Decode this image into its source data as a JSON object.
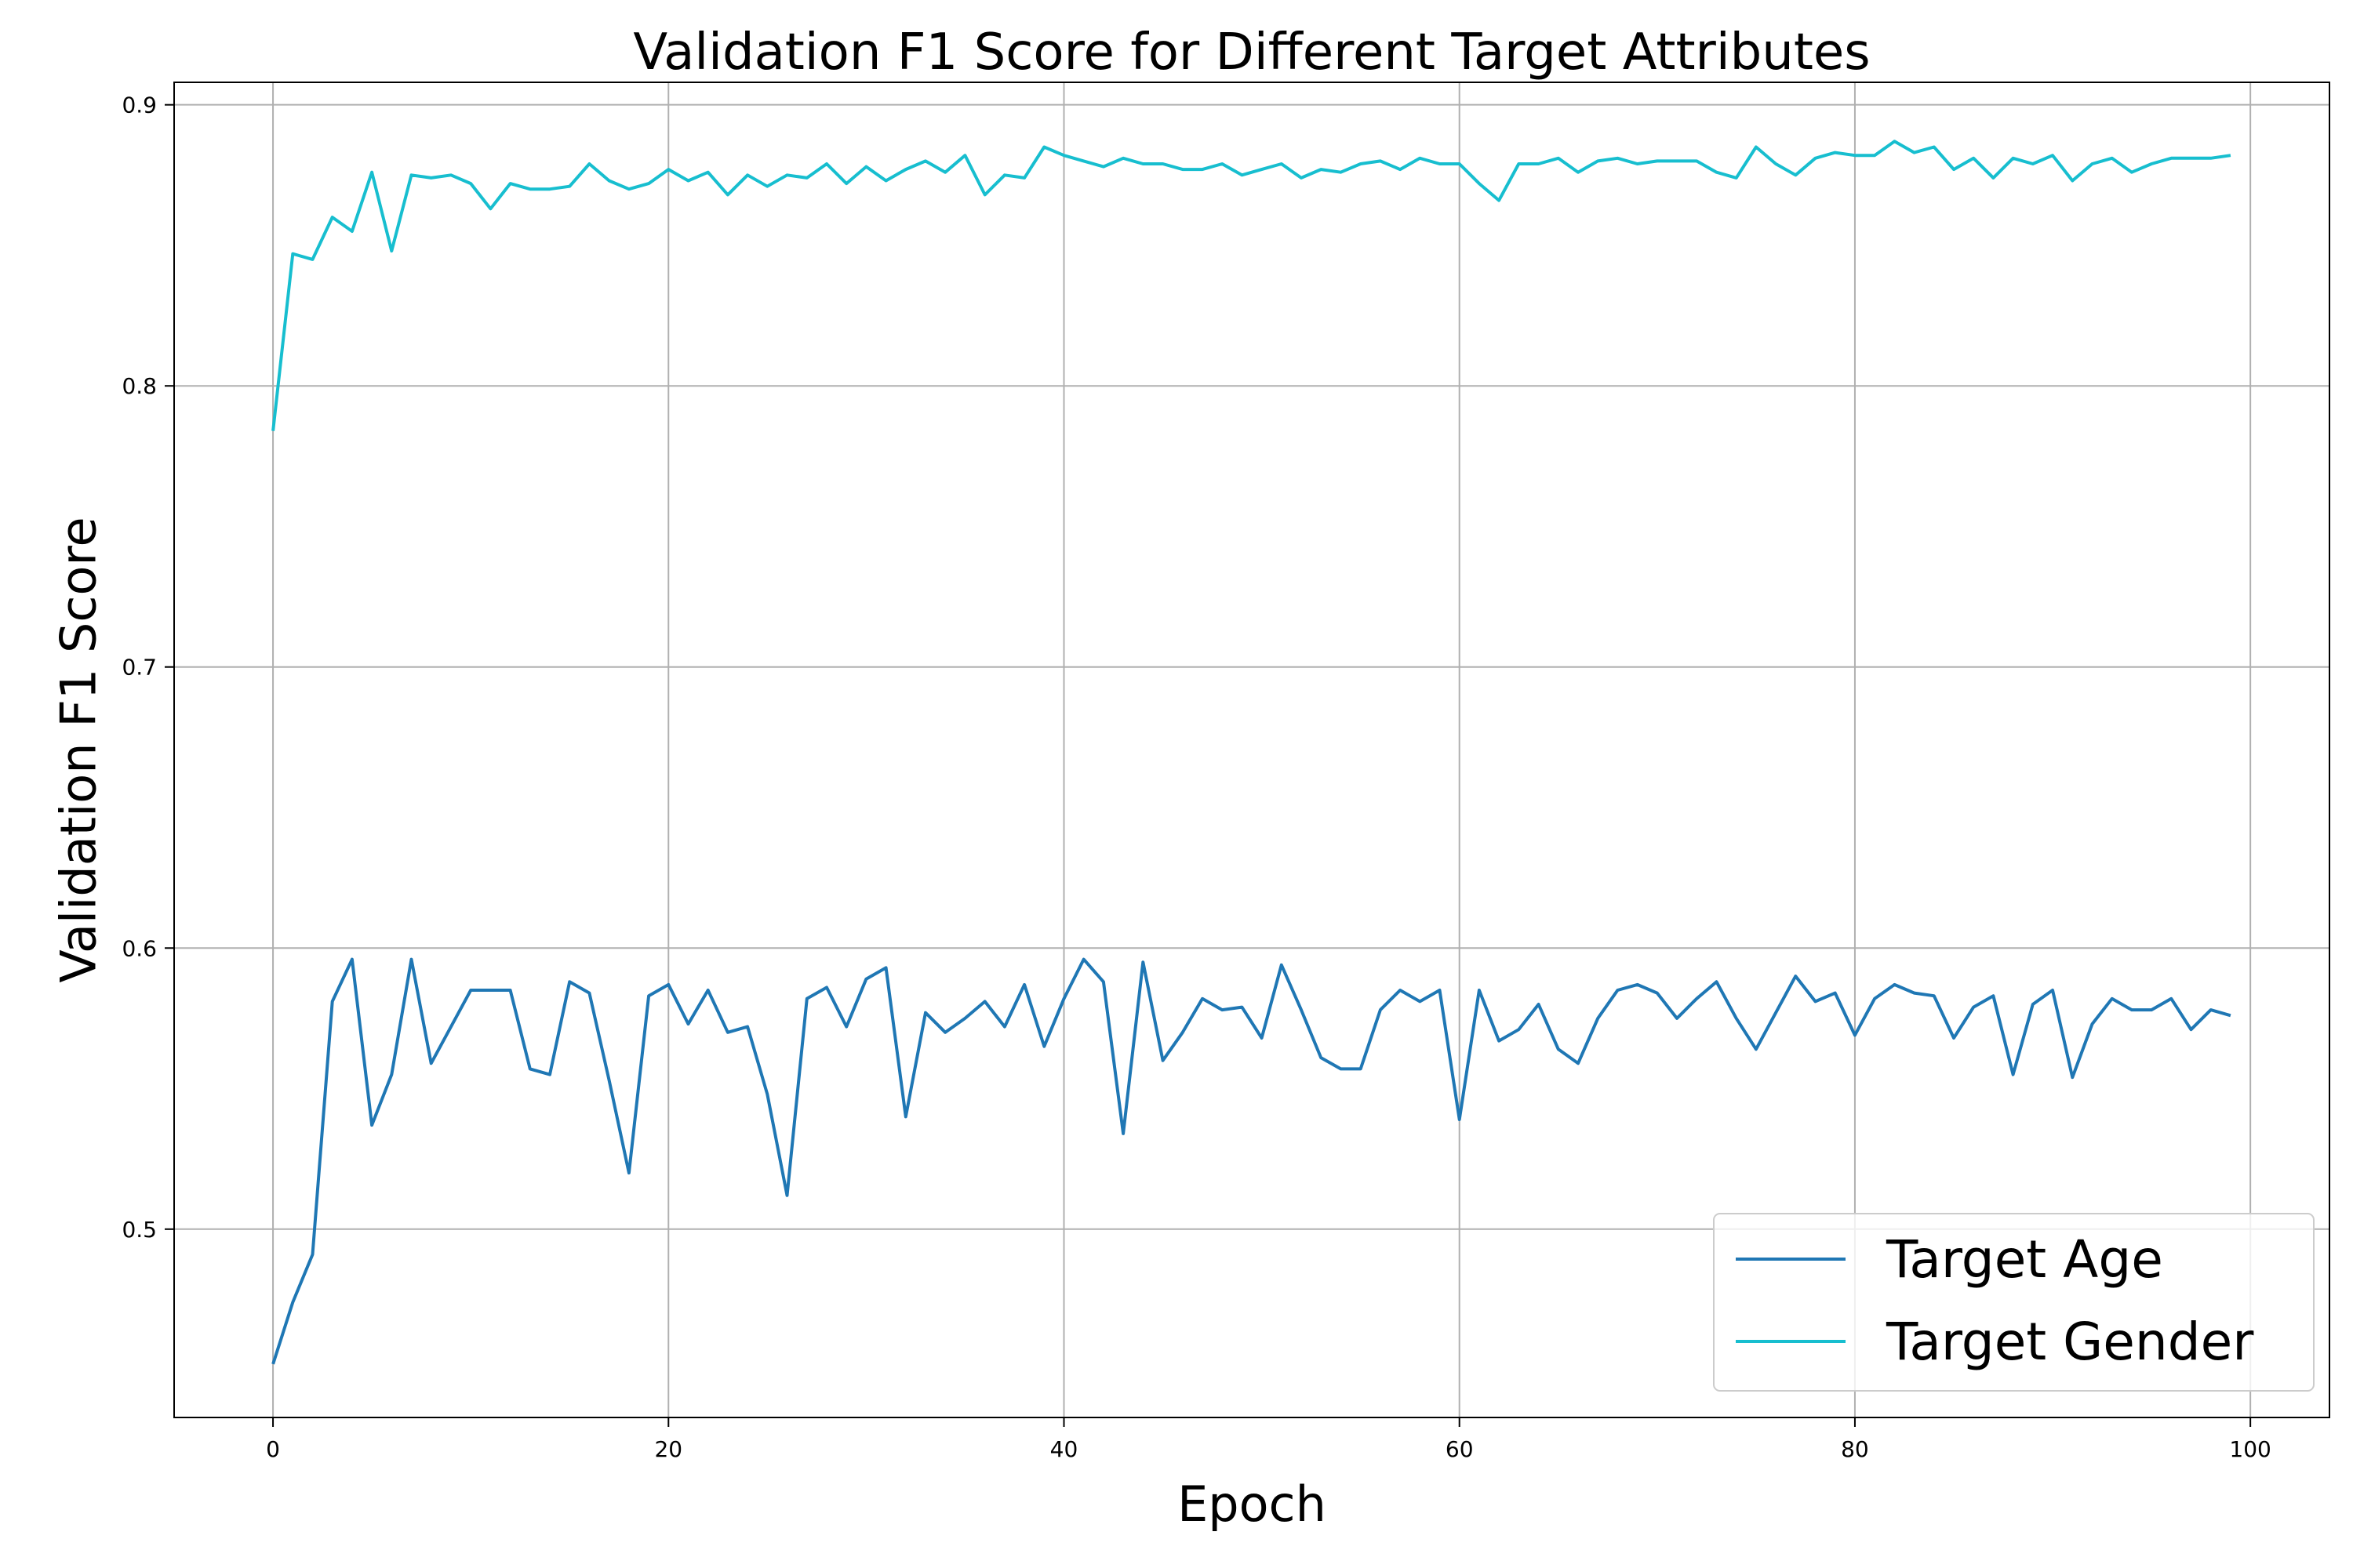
{
  "chart_data": {
    "type": "line",
    "title": "Validation F1 Score for Different Target Attributes",
    "xlabel": "Epoch",
    "ylabel": "Validation F1 Score",
    "xlim": [
      -5,
      104
    ],
    "ylim": [
      0.433,
      0.908
    ],
    "xticks": [
      0,
      20,
      40,
      60,
      80,
      100
    ],
    "yticks": [
      0.5,
      0.6,
      0.7,
      0.8,
      0.9
    ],
    "xtick_labels": [
      "0",
      "20",
      "40",
      "60",
      "80",
      "100"
    ],
    "ytick_labels": [
      "0.5",
      "0.6",
      "0.7",
      "0.8",
      "0.9"
    ],
    "grid": true,
    "legend_position": "lower-right",
    "x": [
      0,
      1,
      2,
      3,
      4,
      5,
      6,
      7,
      8,
      9,
      10,
      11,
      12,
      13,
      14,
      15,
      16,
      17,
      18,
      19,
      20,
      21,
      22,
      23,
      24,
      25,
      26,
      27,
      28,
      29,
      30,
      31,
      32,
      33,
      34,
      35,
      36,
      37,
      38,
      39,
      40,
      41,
      42,
      43,
      44,
      45,
      46,
      47,
      48,
      49,
      50,
      51,
      52,
      53,
      54,
      55,
      56,
      57,
      58,
      59,
      60,
      61,
      62,
      63,
      64,
      65,
      66,
      67,
      68,
      69,
      70,
      71,
      72,
      73,
      74,
      75,
      76,
      77,
      78,
      79,
      80,
      81,
      82,
      83,
      84,
      85,
      86,
      87,
      88,
      89,
      90,
      91,
      92,
      93,
      94,
      95,
      96,
      97,
      98,
      99
    ],
    "series": [
      {
        "name": "Target Age",
        "color": "#1f77b4",
        "values": [
          0.452,
          0.474,
          0.491,
          0.581,
          0.596,
          0.537,
          0.555,
          0.596,
          0.559,
          0.572,
          0.585,
          0.585,
          0.585,
          0.557,
          0.555,
          0.588,
          0.584,
          0.553,
          0.52,
          0.583,
          0.587,
          0.573,
          0.585,
          0.57,
          0.572,
          0.548,
          0.512,
          0.582,
          0.586,
          0.572,
          0.589,
          0.593,
          0.54,
          0.577,
          0.57,
          0.575,
          0.581,
          0.572,
          0.587,
          0.565,
          0.582,
          0.596,
          0.588,
          0.534,
          0.595,
          0.56,
          0.57,
          0.582,
          0.578,
          0.579,
          0.568,
          0.594,
          0.578,
          0.561,
          0.557,
          0.557,
          0.578,
          0.585,
          0.581,
          0.585,
          0.539,
          0.585,
          0.567,
          0.571,
          0.58,
          0.564,
          0.559,
          0.575,
          0.585,
          0.587,
          0.584,
          0.575,
          0.582,
          0.588,
          0.575,
          0.564,
          0.577,
          0.59,
          0.581,
          0.584,
          0.569,
          0.582,
          0.587,
          0.584,
          0.583,
          0.568,
          0.579,
          0.583,
          0.555,
          0.58,
          0.585,
          0.554,
          0.573,
          0.582,
          0.578,
          0.578,
          0.582,
          0.571,
          0.578,
          0.576
        ]
      },
      {
        "name": "Target Gender",
        "color": "#17becf",
        "values": [
          0.784,
          0.847,
          0.845,
          0.86,
          0.855,
          0.876,
          0.848,
          0.875,
          0.874,
          0.875,
          0.872,
          0.863,
          0.872,
          0.87,
          0.87,
          0.871,
          0.879,
          0.873,
          0.87,
          0.872,
          0.877,
          0.873,
          0.876,
          0.868,
          0.875,
          0.871,
          0.875,
          0.874,
          0.879,
          0.872,
          0.878,
          0.873,
          0.877,
          0.88,
          0.876,
          0.882,
          0.868,
          0.875,
          0.874,
          0.885,
          0.882,
          0.88,
          0.878,
          0.881,
          0.879,
          0.879,
          0.877,
          0.877,
          0.879,
          0.875,
          0.877,
          0.879,
          0.874,
          0.877,
          0.876,
          0.879,
          0.88,
          0.877,
          0.881,
          0.879,
          0.879,
          0.872,
          0.866,
          0.879,
          0.879,
          0.881,
          0.876,
          0.88,
          0.881,
          0.879,
          0.88,
          0.88,
          0.88,
          0.876,
          0.874,
          0.885,
          0.879,
          0.875,
          0.881,
          0.883,
          0.882,
          0.882,
          0.887,
          0.883,
          0.885,
          0.877,
          0.881,
          0.874,
          0.881,
          0.879,
          0.882,
          0.873,
          0.879,
          0.881,
          0.876,
          0.879,
          0.881,
          0.881,
          0.881,
          0.882
        ]
      }
    ]
  }
}
